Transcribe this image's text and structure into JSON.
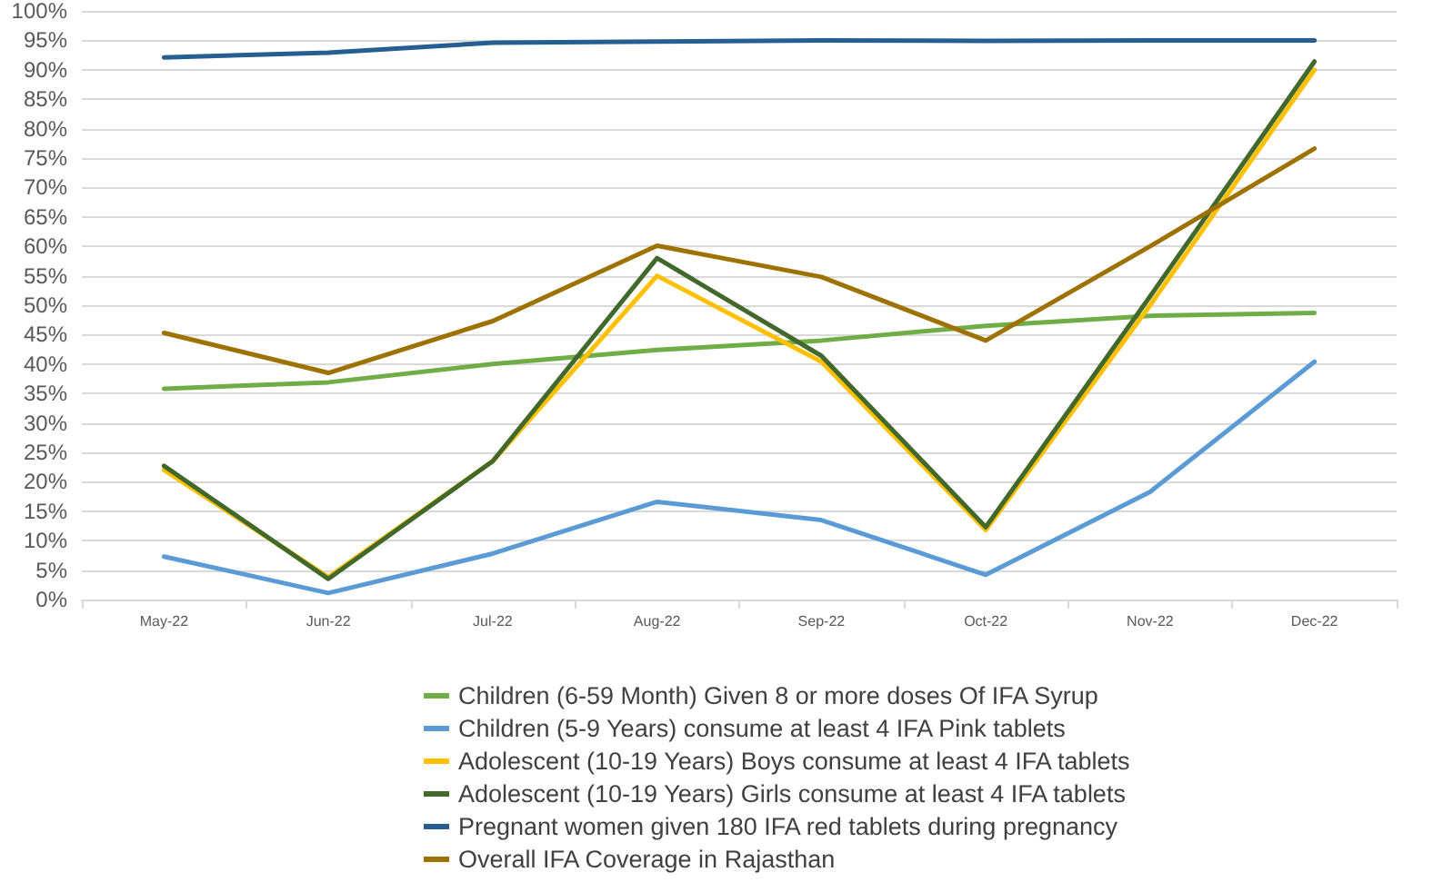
{
  "chart_data": {
    "type": "line",
    "categories": [
      "May-22",
      "Jun-22",
      "Jul-22",
      "Aug-22",
      "Sep-22",
      "Oct-22",
      "Nov-22",
      "Dec-22"
    ],
    "series": [
      {
        "name": "Children (6-59 Month) Given 8 or more doses Of IFA Syrup",
        "color": "#70ad47",
        "values": [
          35.8,
          36.9,
          40,
          42.4,
          44,
          46.5,
          48.2,
          48.7
        ]
      },
      {
        "name": "Children (5-9 Years) consume at least 4 IFA Pink tablets",
        "color": "#5b9bd5",
        "values": [
          7.3,
          1.1,
          7.8,
          16.6,
          13.5,
          4.2,
          18.3,
          40.4
        ]
      },
      {
        "name": "Adolescent (10-19 Years) Boys consume at least 4 IFA tablets",
        "color": "#ffc000",
        "values": [
          22,
          3.8,
          23.5,
          55,
          40.4,
          11.8,
          50,
          90
        ]
      },
      {
        "name": "Adolescent (10-19 Years) Girls consume at least 4 IFA tablets",
        "color": "#43682b",
        "values": [
          22.7,
          3.5,
          23.5,
          58,
          41.4,
          12.3,
          51.5,
          91.4
        ]
      },
      {
        "name": "Pregnant women given 180 IFA red tablets during pregnancy",
        "color": "#255e91",
        "values": [
          92.1,
          92.9,
          94.6,
          94.8,
          95,
          94.9,
          95,
          95
        ]
      },
      {
        "name": "Overall IFA Coverage in Rajasthan",
        "color": "#9e7200",
        "values": [
          45.3,
          38.5,
          47.3,
          60.1,
          54.8,
          44,
          60,
          76.6
        ]
      }
    ],
    "ylim": [
      0,
      100
    ],
    "yticks": [
      {
        "value": 0,
        "label": "0%"
      },
      {
        "value": 5,
        "label": "5%"
      },
      {
        "value": 10,
        "label": "10%"
      },
      {
        "value": 15,
        "label": "15%"
      },
      {
        "value": 20,
        "label": "20%"
      },
      {
        "value": 25,
        "label": "25%"
      },
      {
        "value": 30,
        "label": "30%"
      },
      {
        "value": 35,
        "label": "35%"
      },
      {
        "value": 40,
        "label": "40%"
      },
      {
        "value": 45,
        "label": "45%"
      },
      {
        "value": 50,
        "label": "50%"
      },
      {
        "value": 55,
        "label": "55%"
      },
      {
        "value": 60,
        "label": "60%"
      },
      {
        "value": 65,
        "label": "65%"
      },
      {
        "value": 70,
        "label": "70%"
      },
      {
        "value": 75,
        "label": "75%"
      },
      {
        "value": 80,
        "label": "80%"
      },
      {
        "value": 85,
        "label": "85%"
      },
      {
        "value": 90,
        "label": "90%"
      },
      {
        "value": 95,
        "label": "95%"
      },
      {
        "value": 100,
        "label": "100%"
      }
    ],
    "grid": "y",
    "legend": "bottom",
    "marker": "none",
    "line_style": "solid"
  }
}
